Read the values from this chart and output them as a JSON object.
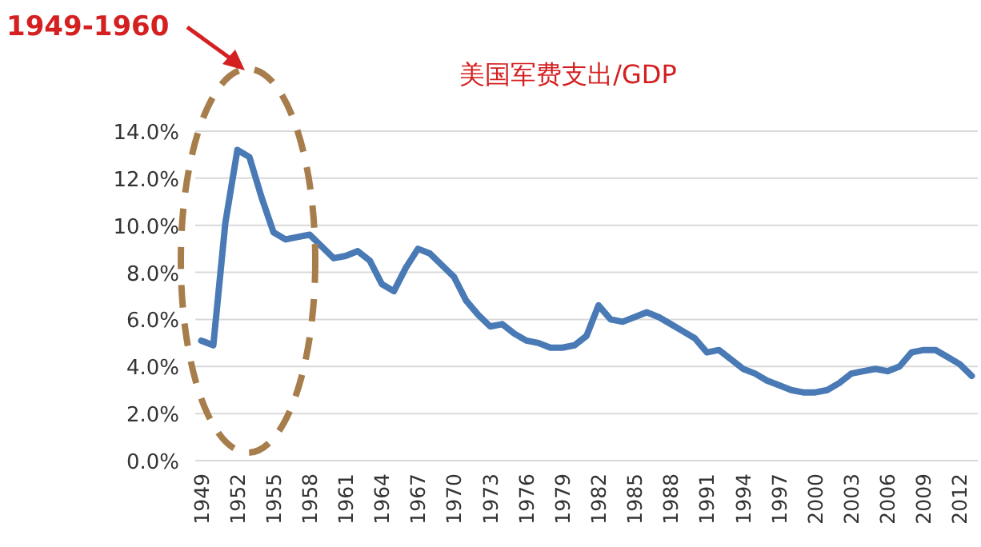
{
  "chart_data": {
    "type": "line",
    "title": "美国军费支出/GDP",
    "categories": [
      "1949",
      null,
      null,
      "1952",
      null,
      null,
      "1955",
      null,
      null,
      "1958",
      null,
      null,
      "1961",
      null,
      null,
      "1964",
      null,
      null,
      "1967",
      null,
      null,
      "1970",
      null,
      null,
      "1973",
      null,
      null,
      "1976",
      null,
      null,
      "1979",
      null,
      null,
      "1982",
      null,
      null,
      "1985",
      null,
      null,
      "1988",
      null,
      null,
      "1991",
      null,
      null,
      "1994",
      null,
      null,
      "1997",
      null,
      null,
      "2000",
      null,
      null,
      "2003",
      null,
      null,
      "2006",
      null,
      null,
      "2009",
      null,
      null,
      "2012",
      null
    ],
    "series": [
      {
        "color": "#4a7ab5",
        "values": [
          5.1,
          4.9,
          10.1,
          13.2,
          12.9,
          11.2,
          9.7,
          9.4,
          9.5,
          9.6,
          9.1,
          8.6,
          8.7,
          8.9,
          8.5,
          7.5,
          7.2,
          8.2,
          9.0,
          8.8,
          8.3,
          7.8,
          6.8,
          6.2,
          5.7,
          5.8,
          5.4,
          5.1,
          5.0,
          4.8,
          4.8,
          4.9,
          5.3,
          6.6,
          6.0,
          5.9,
          6.1,
          6.3,
          6.1,
          5.8,
          5.5,
          5.2,
          4.6,
          4.7,
          4.3,
          3.9,
          3.7,
          3.4,
          3.2,
          3.0,
          2.9,
          2.9,
          3.0,
          3.3,
          3.7,
          3.8,
          3.9,
          3.8,
          4.0,
          4.6,
          4.7,
          4.7,
          4.4,
          4.1,
          3.6
        ]
      }
    ],
    "ylim": [
      0,
      14
    ],
    "yticks": [
      {
        "value": 0,
        "label": "0.0%"
      },
      {
        "value": 2,
        "label": "2.0%"
      },
      {
        "value": 4,
        "label": "4.0%"
      },
      {
        "value": 6,
        "label": "6.0%"
      },
      {
        "value": 8,
        "label": "8.0%"
      },
      {
        "value": 10,
        "label": "10.0%"
      },
      {
        "value": 12,
        "label": "12.0%"
      },
      {
        "value": 14,
        "label": "14.0%"
      }
    ],
    "grid": "y",
    "annotations": [
      "1949-1960"
    ]
  }
}
